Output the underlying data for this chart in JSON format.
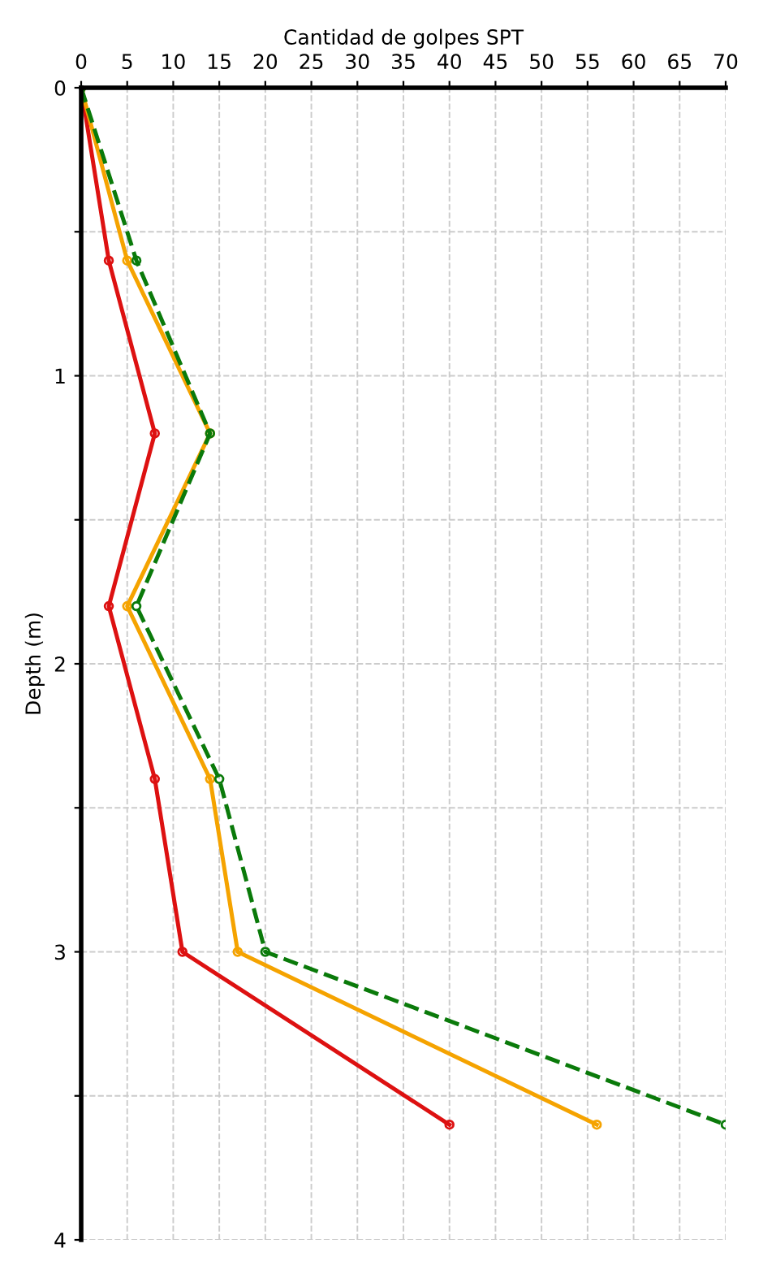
{
  "chart_data": {
    "type": "line",
    "xlabel": "Cantidad de golpes SPT",
    "ylabel": "Depth (m)",
    "xlim": [
      0,
      70
    ],
    "xticks": [
      0,
      5,
      10,
      15,
      20,
      25,
      30,
      35,
      40,
      45,
      50,
      55,
      60,
      65,
      70
    ],
    "ylim": [
      4,
      0
    ],
    "yticks": [
      0,
      {
        "value": 0.5,
        "label": null
      },
      1,
      {
        "value": 1.5,
        "label": null
      },
      2,
      {
        "value": 2.5,
        "label": null
      },
      3,
      {
        "value": 3.5,
        "label": null
      },
      4
    ],
    "grid": true,
    "marker": "circle",
    "series": [
      {
        "color": "#dd1111",
        "x": [
          0,
          3,
          8,
          3,
          8,
          11,
          40
        ],
        "values": [
          0,
          0.6,
          1.2,
          1.8,
          2.4,
          3.0,
          3.6
        ],
        "line_style": "solid"
      },
      {
        "color": "#f5a300",
        "x": [
          0,
          5,
          14,
          5,
          14,
          17,
          56
        ],
        "values": [
          0,
          0.6,
          1.2,
          1.8,
          2.4,
          3.0,
          3.6
        ],
        "line_style": "solid"
      },
      {
        "color": "#0a7a0a",
        "x": [
          0,
          6,
          14,
          6,
          15,
          20,
          70
        ],
        "values": [
          0,
          0.6,
          1.2,
          1.8,
          2.4,
          3.0,
          3.6
        ],
        "line_style": "dashed"
      }
    ]
  }
}
